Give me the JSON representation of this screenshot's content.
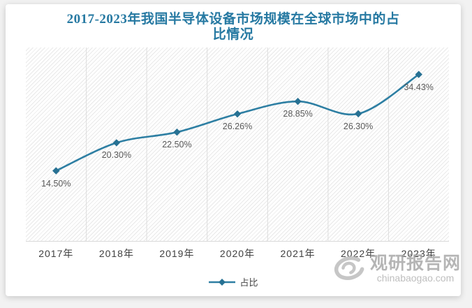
{
  "chart": {
    "title_line1": "2017-2023年我国半导体设备市场规模在全球市场中的占",
    "title_line2": "比情况",
    "colors": {
      "title": "#2679a2",
      "line": "#2e7fa3",
      "marker": "#277193",
      "gridline": "#dcdcdc",
      "data_label": "#595959",
      "axis_label": "#404040"
    }
  },
  "legend": {
    "label": "占比"
  },
  "watermark": {
    "logo": "swirl-logo-icon",
    "brand": "观研报告网",
    "url": "chinabaogao.com"
  },
  "chart_data": {
    "type": "line",
    "title": "2017-2023年我国半导体设备市场规模在全球市场中的占比情况",
    "categories": [
      "2017年",
      "2018年",
      "2019年",
      "2020年",
      "2021年",
      "2022年",
      "2023年"
    ],
    "series": [
      {
        "name": "占比",
        "values": [
          14.5,
          20.3,
          22.5,
          26.26,
          28.85,
          26.3,
          34.43
        ]
      }
    ],
    "labels": [
      "14.50%",
      "20.30%",
      "22.50%",
      "26.26%",
      "28.85%",
      "26.30%",
      "34.43%"
    ],
    "xlabel": "",
    "ylabel": "",
    "ylim": [
      0,
      40
    ],
    "grid": "vertical-only",
    "legend_position": "bottom",
    "marker": "diamond",
    "line_smooth": true,
    "hatch_background": true
  }
}
